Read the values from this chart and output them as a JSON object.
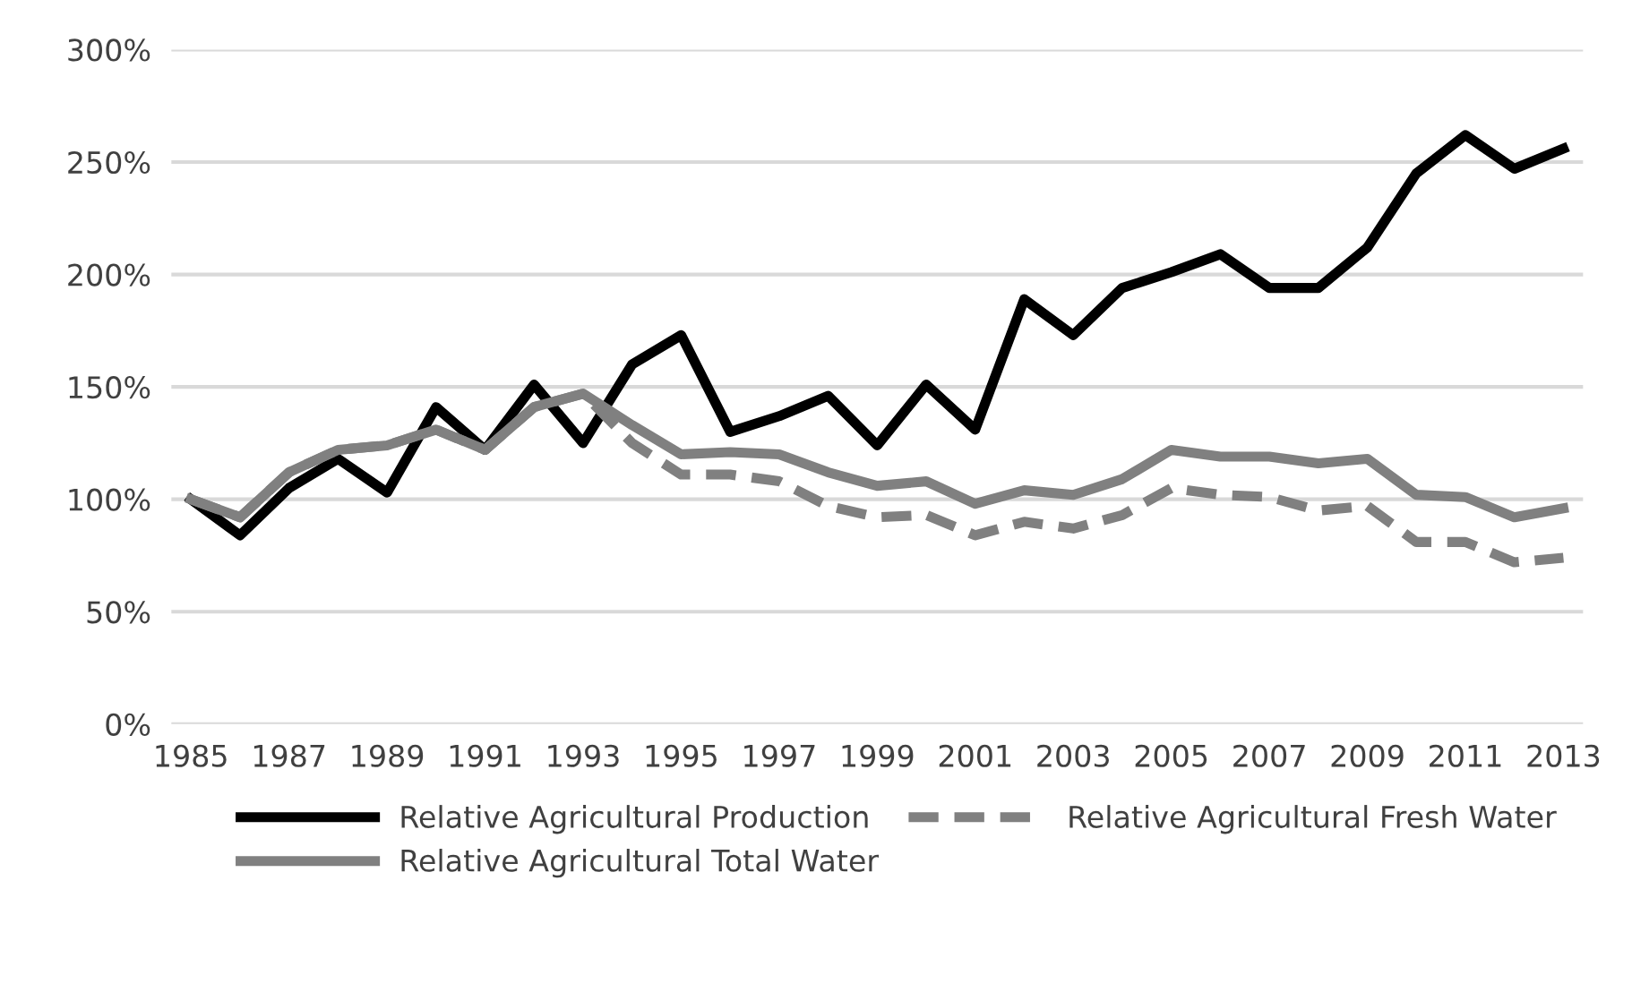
{
  "chart_data": {
    "type": "line",
    "categories": [
      "1985",
      null,
      "1987",
      null,
      "1989",
      null,
      "1991",
      null,
      "1993",
      null,
      "1995",
      null,
      "1997",
      null,
      "1999",
      null,
      "2001",
      null,
      "2003",
      null,
      "2005",
      null,
      "2007",
      null,
      "2009",
      null,
      "2011",
      null,
      "2013"
    ],
    "series": [
      {
        "name": "Relative Agricultural Production",
        "color": "#000000",
        "line_style": "solid",
        "values": [
          100,
          84,
          105,
          118,
          103,
          141,
          122,
          151,
          125,
          160,
          173,
          130,
          137,
          146,
          124,
          151,
          131,
          189,
          173,
          194,
          201,
          209,
          194,
          194,
          212,
          245,
          262,
          247,
          256
        ]
      },
      {
        "name": "Relative Agricultural Total Water",
        "color": "#808080",
        "line_style": "solid",
        "values": [
          100,
          92,
          112,
          122,
          124,
          131,
          122,
          141,
          147,
          133,
          120,
          121,
          120,
          112,
          106,
          108,
          98,
          104,
          102,
          109,
          122,
          119,
          119,
          116,
          118,
          102,
          101,
          92,
          96
        ]
      },
      {
        "name": "Relative Agricultural Fresh Water",
        "color": "#808080",
        "line_style": "dashed",
        "values": [
          100,
          92,
          112,
          122,
          124,
          131,
          122,
          141,
          147,
          125,
          111,
          111,
          108,
          97,
          92,
          93,
          84,
          90,
          87,
          93,
          105,
          102,
          101,
          95,
          97,
          81,
          81,
          72,
          74
        ]
      }
    ],
    "ylim": [
      0,
      300
    ],
    "yticks": [
      {
        "value": 0,
        "label": "0%"
      },
      {
        "value": 50,
        "label": "50%"
      },
      {
        "value": 100,
        "label": "100%"
      },
      {
        "value": 150,
        "label": "150%"
      },
      {
        "value": 200,
        "label": "200%"
      },
      {
        "value": 250,
        "label": "250%"
      },
      {
        "value": 300,
        "label": "300%"
      }
    ],
    "grid": "y",
    "legend": "bottom",
    "marker": "none"
  }
}
